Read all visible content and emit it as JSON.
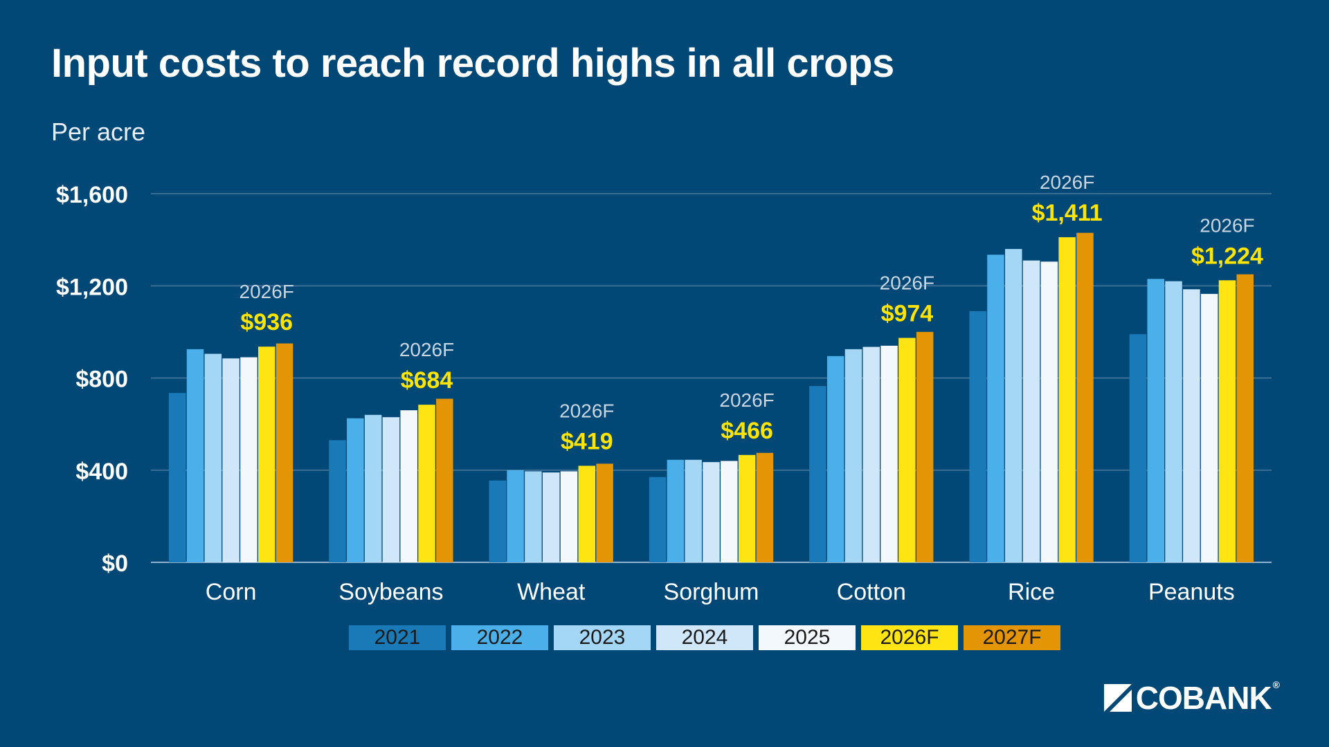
{
  "header": {
    "title": "Input costs to reach record highs in all crops",
    "subtitle": "Per acre"
  },
  "logo": {
    "text": "CoBank",
    "reg": "®"
  },
  "colors": {
    "background": "#014877",
    "grid": "#5a84a6",
    "axis": "#8fb3cf",
    "highlight_label": "#ffe400",
    "forecast_label": "#c9d6e2"
  },
  "chart_data": {
    "type": "bar",
    "title": "Input costs to reach record highs in all crops",
    "subtitle": "Per acre",
    "xlabel": "",
    "ylabel": "",
    "ylim": [
      0,
      1600
    ],
    "yticks": [
      0,
      400,
      800,
      1200,
      1600
    ],
    "ytick_labels": [
      "$0",
      "$400",
      "$800",
      "$1,200",
      "$1,600"
    ],
    "grid": true,
    "legend_position": "bottom",
    "categories": [
      "Corn",
      "Soybeans",
      "Wheat",
      "Sorghum",
      "Cotton",
      "Rice",
      "Peanuts"
    ],
    "series": [
      {
        "name": "2021",
        "color": "#1a7ab8",
        "values": [
          735,
          530,
          355,
          370,
          765,
          1090,
          990
        ]
      },
      {
        "name": "2022",
        "color": "#4bb0e9",
        "values": [
          925,
          625,
          400,
          445,
          895,
          1335,
          1230
        ]
      },
      {
        "name": "2023",
        "color": "#a4d6f5",
        "values": [
          905,
          640,
          395,
          445,
          925,
          1360,
          1220
        ]
      },
      {
        "name": "2024",
        "color": "#cfe7f9",
        "values": [
          885,
          630,
          390,
          435,
          935,
          1310,
          1185
        ]
      },
      {
        "name": "2025",
        "color": "#f3f8fd",
        "values": [
          890,
          660,
          395,
          440,
          940,
          1305,
          1165
        ]
      },
      {
        "name": "2026F",
        "color": "#ffe414",
        "values": [
          936,
          684,
          419,
          466,
          974,
          1411,
          1224
        ]
      },
      {
        "name": "2027F",
        "color": "#e39506",
        "values": [
          950,
          710,
          428,
          475,
          1000,
          1430,
          1250
        ]
      }
    ],
    "annotations": [
      {
        "category": "Corn",
        "series": "2026F",
        "tag": "2026F",
        "label": "$936"
      },
      {
        "category": "Soybeans",
        "series": "2026F",
        "tag": "2026F",
        "label": "$684"
      },
      {
        "category": "Wheat",
        "series": "2026F",
        "tag": "2026F",
        "label": "$419"
      },
      {
        "category": "Sorghum",
        "series": "2026F",
        "tag": "2026F",
        "label": "$466"
      },
      {
        "category": "Cotton",
        "series": "2026F",
        "tag": "2026F",
        "label": "$974"
      },
      {
        "category": "Rice",
        "series": "2026F",
        "tag": "2026F",
        "label": "$1,411"
      },
      {
        "category": "Peanuts",
        "series": "2026F",
        "tag": "2026F",
        "label": "$1,224"
      }
    ]
  }
}
